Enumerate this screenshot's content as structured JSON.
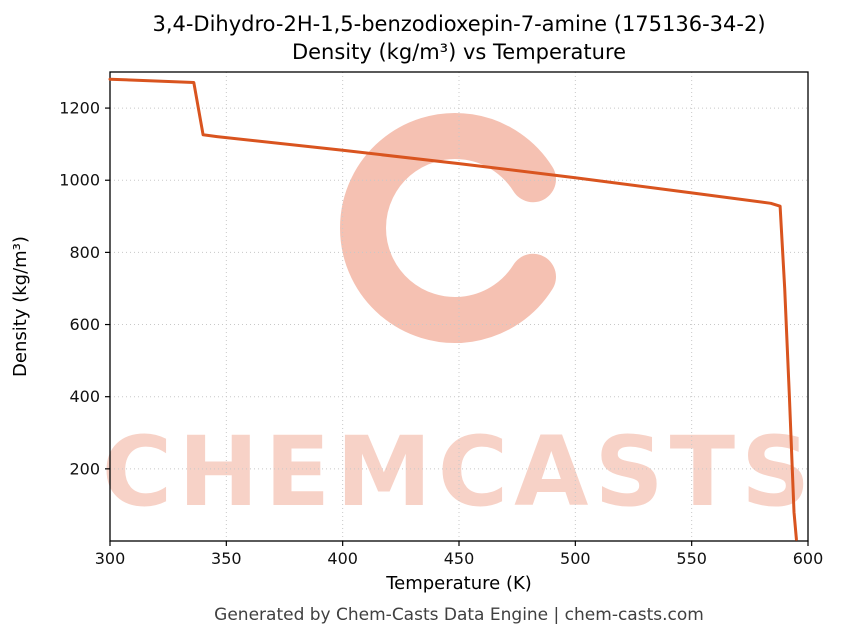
{
  "header": {
    "title_line1": "3,4-Dihydro-2H-1,5-benzodioxepin-7-amine (175136-34-2)",
    "title_line2": "Density (kg/m³) vs Temperature"
  },
  "footer": {
    "caption": "Generated by Chem-Casts Data Engine | chem-casts.com"
  },
  "watermark": {
    "logo_letter": "C",
    "text": "CHEMCASTS",
    "color": "#e4542a",
    "text_opacity": 0.26,
    "logo_opacity": 0.36
  },
  "chart_data": {
    "type": "line",
    "title": "3,4-Dihydro-2H-1,5-benzodioxepin-7-amine (175136-34-2) — Density (kg/m³) vs Temperature",
    "xlabel": "Temperature (K)",
    "ylabel": "Density (kg/m³)",
    "xlim": [
      300,
      600
    ],
    "ylim": [
      0,
      1300
    ],
    "xticks": [
      300,
      350,
      400,
      450,
      500,
      550,
      600
    ],
    "yticks": [
      200,
      400,
      600,
      800,
      1000,
      1200
    ],
    "grid": true,
    "legend_position": "none",
    "grid_color": "#c8c8c8",
    "axis_color": "#000000",
    "tick_label_color": "#111111",
    "series": [
      {
        "name": "Density",
        "color": "#d9541f",
        "points": [
          [
            300,
            1280
          ],
          [
            336,
            1271
          ],
          [
            340,
            1126
          ],
          [
            346,
            1121
          ],
          [
            400,
            1083
          ],
          [
            450,
            1046
          ],
          [
            500,
            1007
          ],
          [
            550,
            965
          ],
          [
            584,
            936
          ],
          [
            588,
            928
          ],
          [
            590,
            700
          ],
          [
            592,
            400
          ],
          [
            594,
            80
          ],
          [
            595,
            5
          ]
        ]
      }
    ]
  }
}
